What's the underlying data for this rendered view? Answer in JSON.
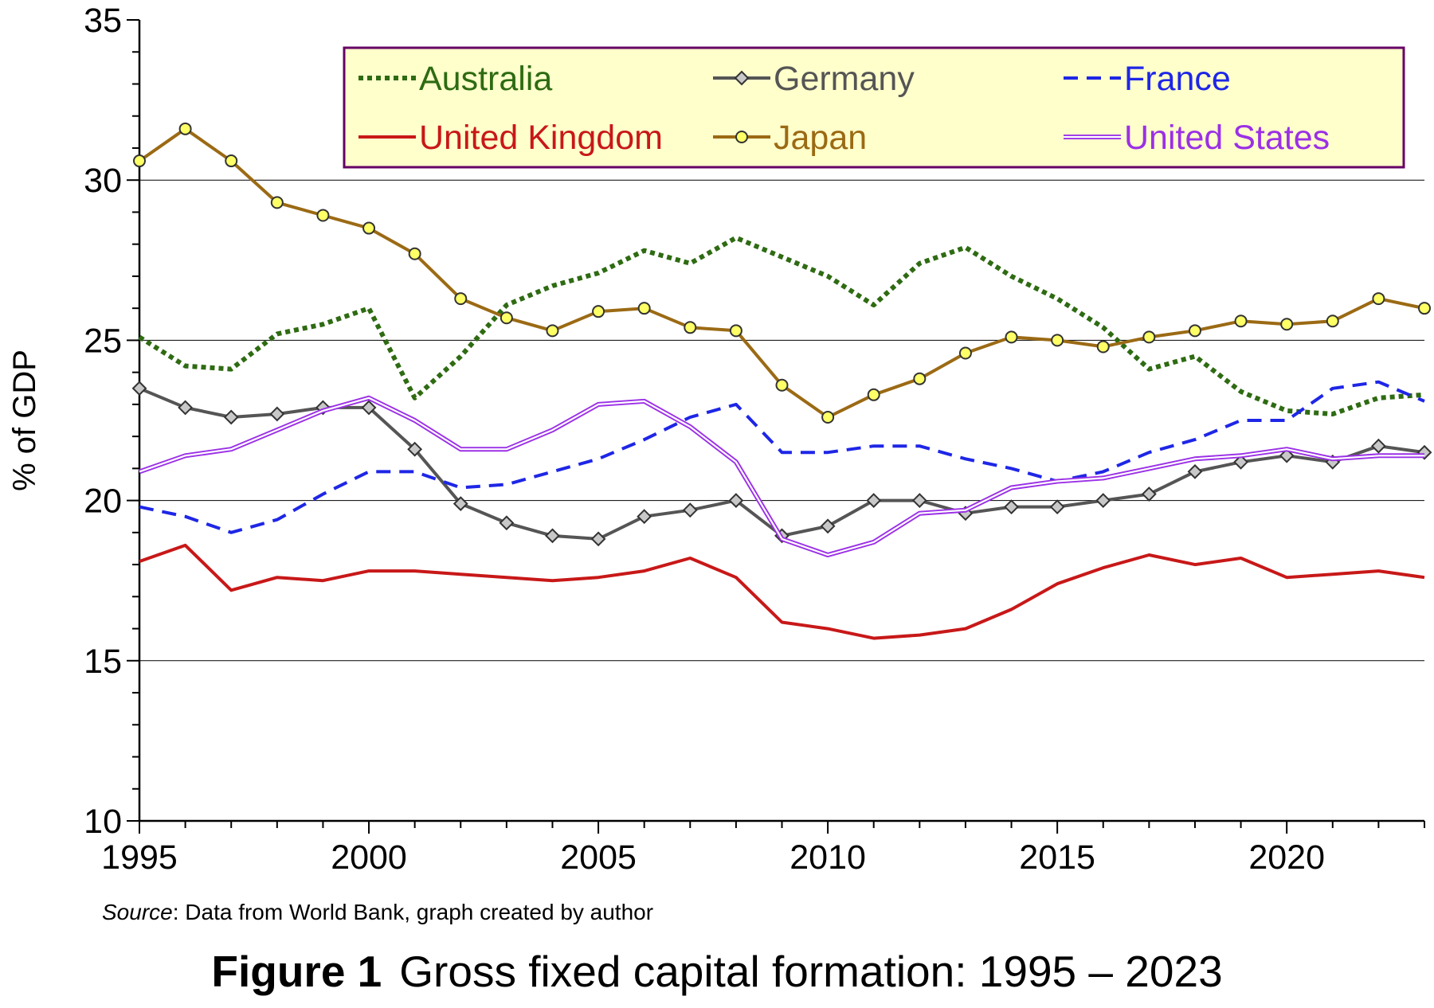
{
  "chart_data": {
    "type": "line",
    "title": "",
    "xlabel": "",
    "ylabel": "% of GDP",
    "xlim": [
      1995,
      2023
    ],
    "ylim": [
      10,
      35
    ],
    "x_ticks": [
      "1995",
      "2000",
      "2005",
      "2010",
      "2015",
      "2020"
    ],
    "y_ticks": [
      "10",
      "15",
      "20",
      "25",
      "30",
      "35"
    ],
    "grid": "horizontal major gridlines",
    "legend_position": "top, inside plot",
    "x": [
      1995,
      1996,
      1997,
      1998,
      1999,
      2000,
      2001,
      2002,
      2003,
      2004,
      2005,
      2006,
      2007,
      2008,
      2009,
      2010,
      2011,
      2012,
      2013,
      2014,
      2015,
      2016,
      2017,
      2018,
      2019,
      2020,
      2021,
      2022,
      2023
    ],
    "series": [
      {
        "name": "Australia",
        "color": "#2e6b12",
        "style": "dotted",
        "values": [
          25.1,
          24.2,
          24.1,
          25.2,
          25.5,
          26.0,
          23.2,
          24.5,
          26.1,
          26.7,
          27.1,
          27.8,
          27.4,
          28.2,
          27.6,
          27.0,
          26.1,
          27.4,
          27.9,
          27.0,
          26.3,
          25.4,
          24.1,
          24.5,
          23.4,
          22.8,
          22.7,
          23.2,
          23.3
        ]
      },
      {
        "name": "Germany",
        "color": "#555555",
        "style": "solid-diamond-markers",
        "values": [
          23.5,
          22.9,
          22.6,
          22.7,
          22.9,
          22.9,
          21.6,
          19.9,
          19.3,
          18.9,
          18.8,
          19.5,
          19.7,
          20.0,
          18.9,
          19.2,
          20.0,
          20.0,
          19.6,
          19.8,
          19.8,
          20.0,
          20.2,
          20.9,
          21.2,
          21.4,
          21.2,
          21.7,
          21.5
        ]
      },
      {
        "name": "France",
        "color": "#1e26e6",
        "style": "dashed",
        "values": [
          19.8,
          19.5,
          19.0,
          19.4,
          20.2,
          20.9,
          20.9,
          20.4,
          20.5,
          20.9,
          21.3,
          21.9,
          22.6,
          23.0,
          21.5,
          21.5,
          21.7,
          21.7,
          21.3,
          21.0,
          20.6,
          20.9,
          21.5,
          21.9,
          22.5,
          22.5,
          23.5,
          23.7,
          23.1
        ]
      },
      {
        "name": "United Kingdom",
        "color": "#c81818",
        "style": "solid",
        "values": [
          18.1,
          18.6,
          17.2,
          17.6,
          17.5,
          17.8,
          17.8,
          17.7,
          17.6,
          17.5,
          17.6,
          17.8,
          18.2,
          17.6,
          16.2,
          16.0,
          15.7,
          15.8,
          16.0,
          16.6,
          17.4,
          17.9,
          18.3,
          18.0,
          18.2,
          17.6,
          17.7,
          17.8,
          17.6
        ]
      },
      {
        "name": "Japan",
        "color": "#9b6a14",
        "style": "solid-circle-markers",
        "values": [
          30.6,
          31.6,
          30.6,
          29.3,
          28.9,
          28.5,
          27.7,
          26.3,
          25.7,
          25.3,
          25.9,
          26.0,
          25.4,
          25.3,
          23.6,
          22.6,
          23.3,
          23.8,
          24.6,
          25.1,
          25.0,
          24.8,
          25.1,
          25.3,
          25.6,
          25.5,
          25.6,
          26.3,
          26.0
        ]
      },
      {
        "name": "United States",
        "color": "#9b30e6",
        "style": "double-line",
        "values": [
          20.9,
          21.4,
          21.6,
          22.2,
          22.8,
          23.2,
          22.5,
          21.6,
          21.6,
          22.2,
          23.0,
          23.1,
          22.3,
          21.2,
          18.8,
          18.3,
          18.7,
          19.6,
          19.7,
          20.4,
          20.6,
          20.7,
          21.0,
          21.3,
          21.4,
          21.6,
          21.3,
          21.4,
          21.4
        ]
      }
    ]
  },
  "source": {
    "label": "Source",
    "text": ": Data from World Bank, graph created by author"
  },
  "caption": {
    "number": "Figure 1",
    "text": "Gross fixed capital formation: 1995 – 2023"
  }
}
